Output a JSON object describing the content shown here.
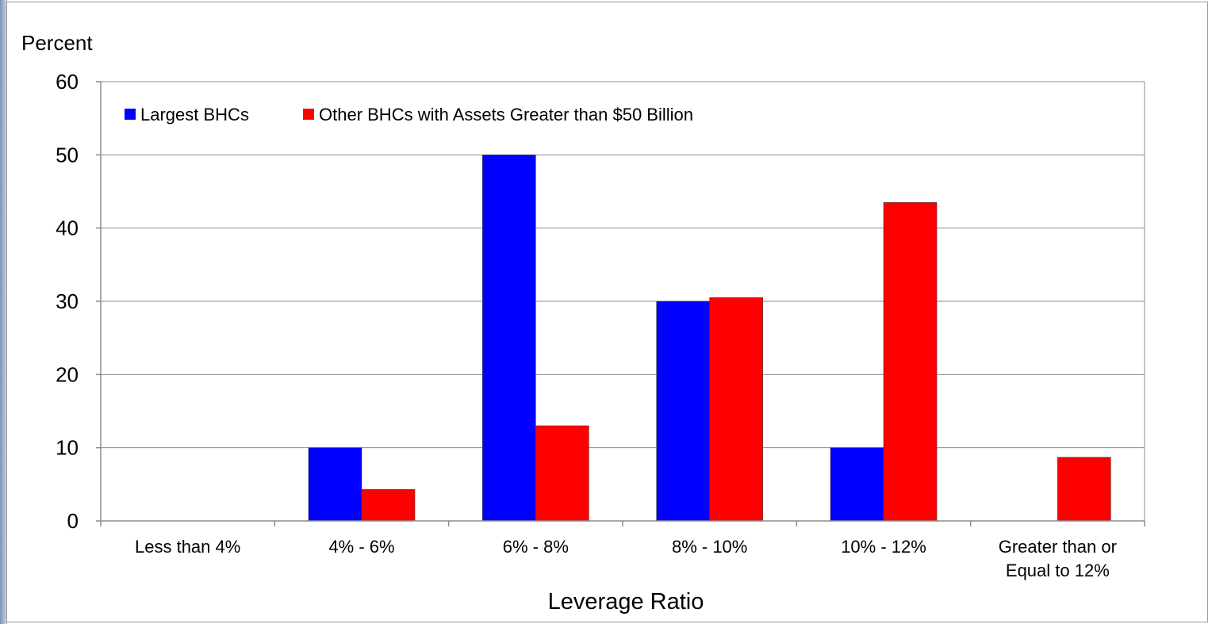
{
  "chart_data": {
    "type": "bar",
    "ylabel": "Percent",
    "xlabel": "Leverage Ratio",
    "ylim": [
      0,
      60
    ],
    "yticks": [
      0,
      10,
      20,
      30,
      40,
      50,
      60
    ],
    "grid": true,
    "legend_position": "top-left",
    "categories": [
      [
        "Less than 4%"
      ],
      [
        "4% - 6%"
      ],
      [
        "6% - 8%"
      ],
      [
        "8% - 10%"
      ],
      [
        "10% - 12%"
      ],
      [
        "Greater than or",
        "Equal to 12%"
      ]
    ],
    "series": [
      {
        "name": "Largest BHCs",
        "color": "#0000ff",
        "values": [
          0,
          10,
          50,
          30,
          10,
          0
        ]
      },
      {
        "name": "Other BHCs with Assets Greater than $50 Billion",
        "color": "#ff0000",
        "values": [
          0,
          4.3,
          13,
          30.5,
          43.5,
          8.7
        ]
      }
    ]
  }
}
